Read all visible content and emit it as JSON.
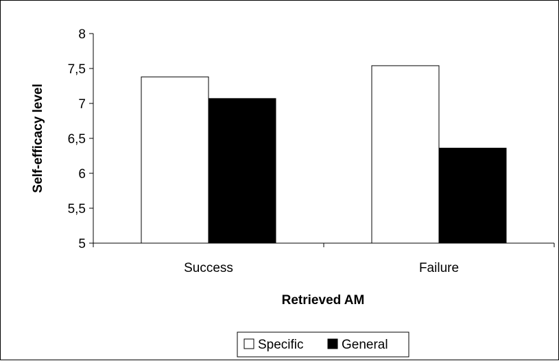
{
  "chart_data": {
    "type": "bar",
    "title": "",
    "xlabel": "Retrieved AM",
    "ylabel": "Self-efficacy level",
    "ylim": [
      5,
      8
    ],
    "yticks": [
      5,
      5.5,
      6,
      6.5,
      7,
      7.5,
      8
    ],
    "ytick_labels": [
      "5",
      "5,5",
      "6",
      "6,5",
      "7",
      "7,5",
      "8"
    ],
    "categories": [
      "Success",
      "Failure"
    ],
    "series": [
      {
        "name": "Specific",
        "color": "#ffffff",
        "values": [
          7.38,
          7.54
        ]
      },
      {
        "name": "General",
        "color": "#000000",
        "values": [
          7.07,
          6.36
        ]
      }
    ],
    "grid": false,
    "legend_position": "bottom"
  }
}
